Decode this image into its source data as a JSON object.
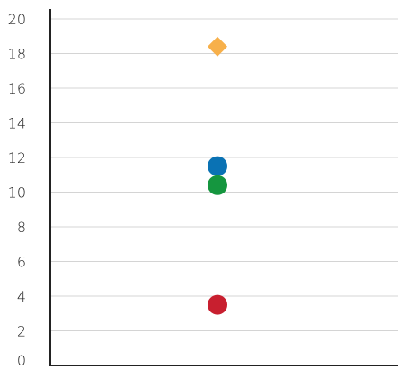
{
  "chart_data": {
    "type": "scatter",
    "title": "",
    "xlabel": "",
    "ylabel": "",
    "ylim": [
      0,
      20
    ],
    "y_ticks": [
      0,
      2,
      4,
      6,
      8,
      10,
      12,
      14,
      16,
      18,
      20
    ],
    "y_tick_labels": [
      "0",
      "2",
      "4",
      "6",
      "8",
      "10",
      "12",
      "14",
      "16",
      "18",
      "20"
    ],
    "grid": "horizontal",
    "legend": "none",
    "points": [
      {
        "y": 18.4,
        "marker": "diamond",
        "color": "#f7b04a"
      },
      {
        "y": 11.5,
        "marker": "circle",
        "color": "#0a72b4"
      },
      {
        "y": 10.4,
        "marker": "circle",
        "color": "#15963f"
      },
      {
        "y": 3.5,
        "marker": "circle",
        "color": "#c81f2f"
      }
    ]
  }
}
